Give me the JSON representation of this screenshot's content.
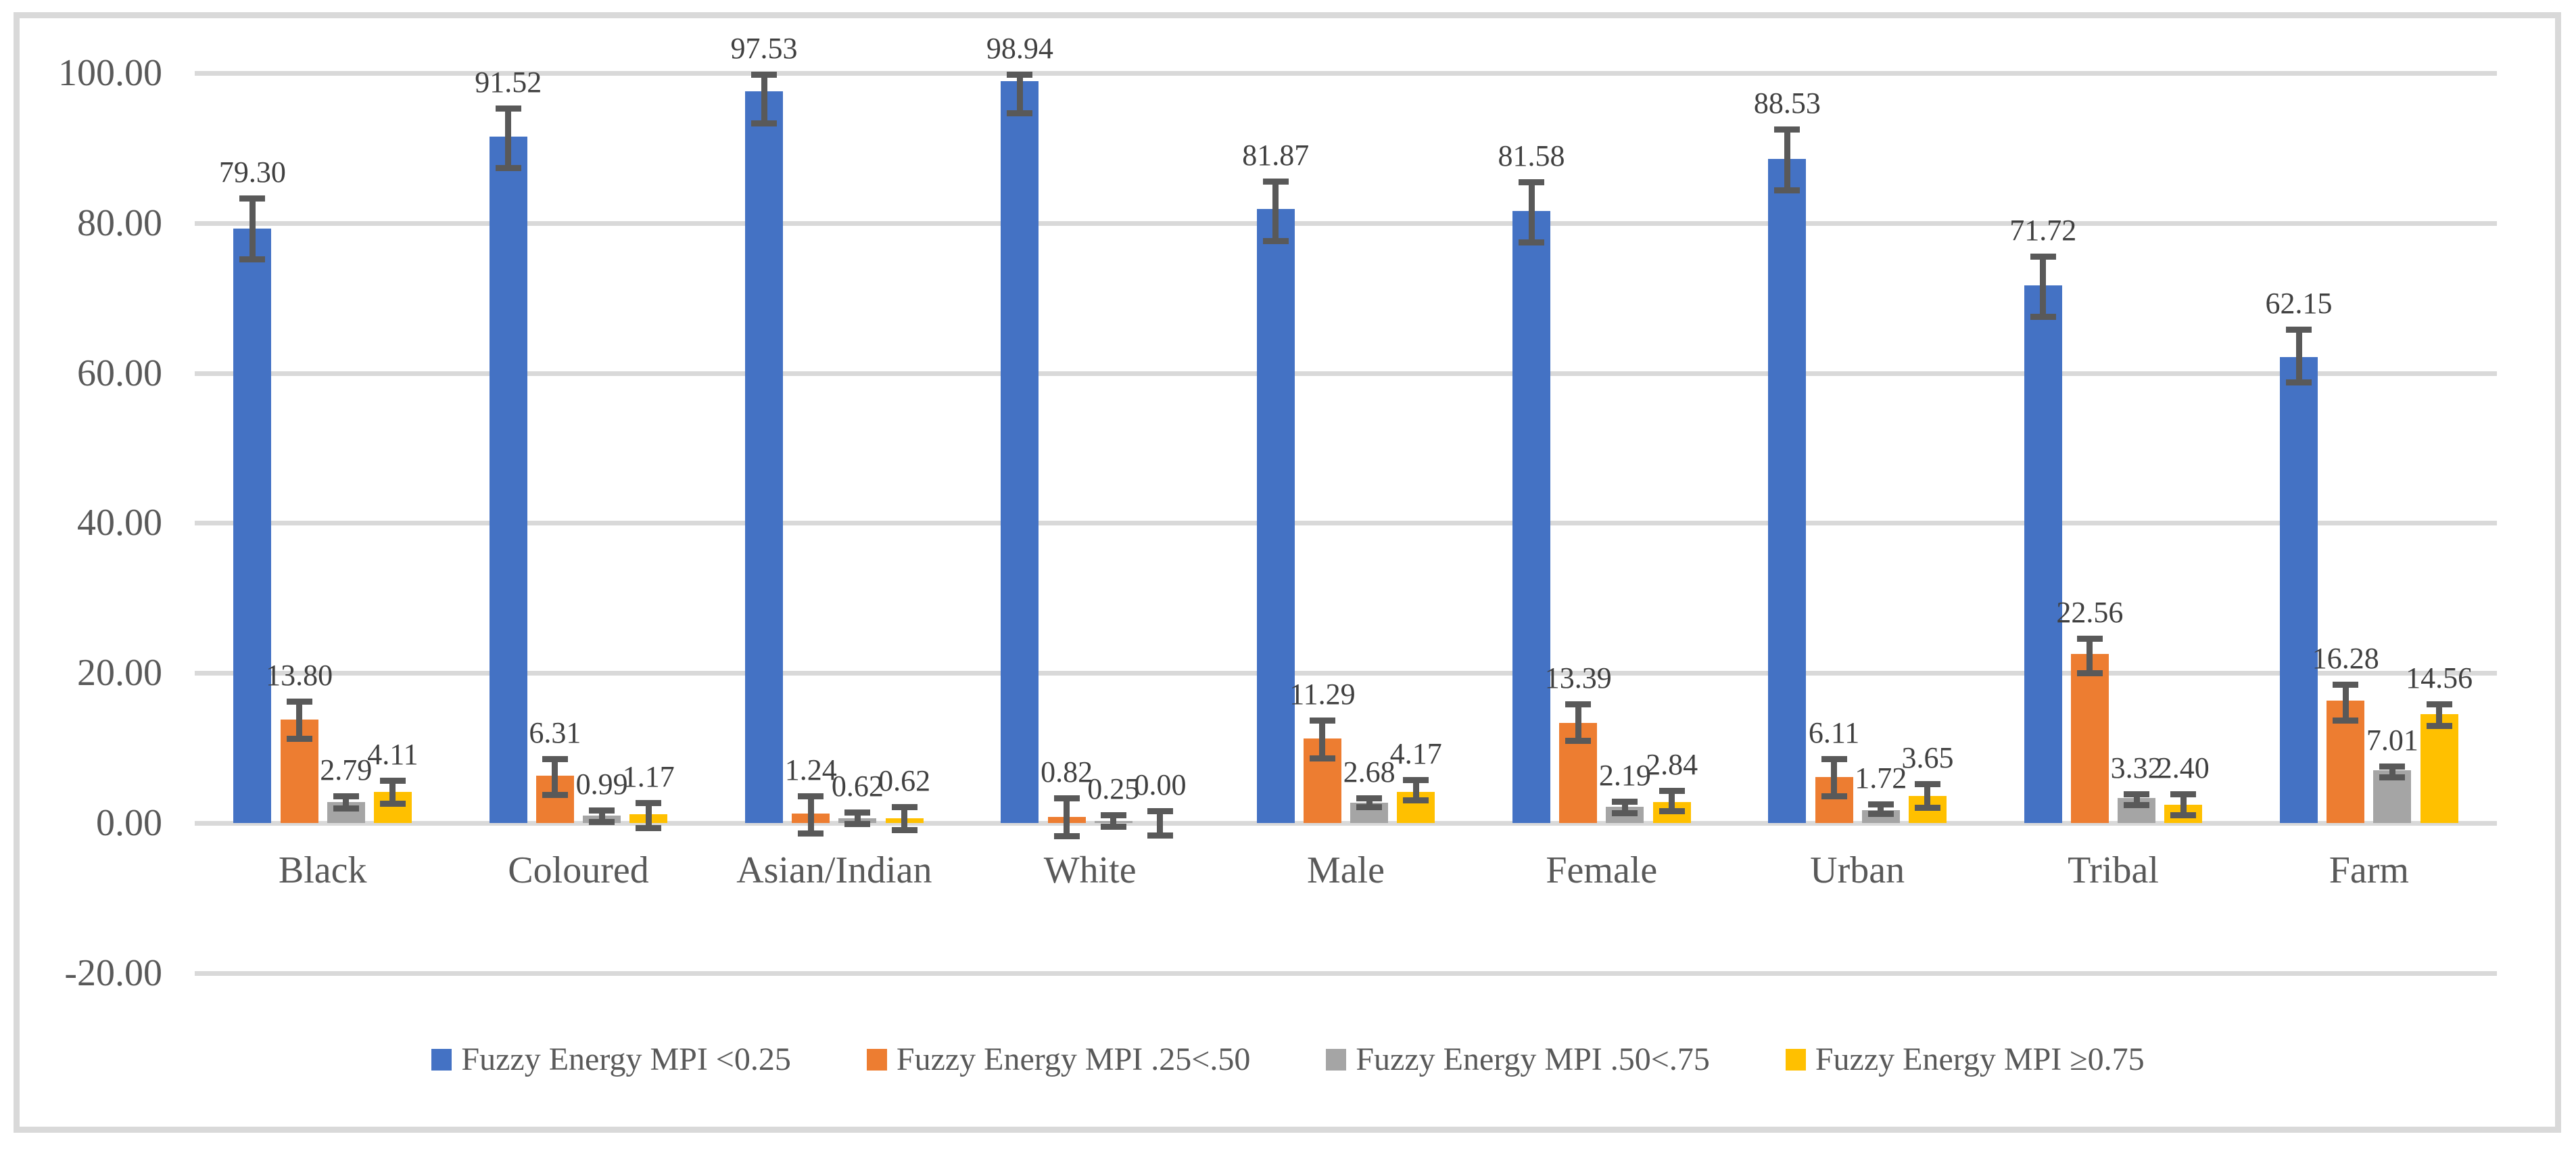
{
  "page": {
    "background": "#FFFFFF",
    "border_color": "#D9D9D9"
  },
  "chart_data": {
    "type": "bar",
    "title": "",
    "xlabel": "",
    "ylabel": "",
    "categories": [
      "Black",
      "Coloured",
      "Asian/Indian",
      "White",
      "Male",
      "Female",
      "Urban",
      "Tribal",
      "Farm"
    ],
    "series": [
      {
        "name": "Fuzzy Energy MPI <0.25",
        "color": "#4472C4",
        "values": [
          79.3,
          91.52,
          97.53,
          98.94,
          81.87,
          81.58,
          88.53,
          71.72,
          62.15
        ],
        "err_up": [
          4.0,
          3.8,
          2.3,
          0.9,
          3.7,
          3.9,
          4.0,
          3.8,
          3.7
        ],
        "err_down": [
          4.1,
          4.1,
          4.2,
          4.3,
          4.2,
          4.1,
          4.1,
          4.2,
          3.4
        ]
      },
      {
        "name": "Fuzzy Energy MPI .25<.50",
        "color": "#ED7D31",
        "values": [
          13.8,
          6.31,
          1.24,
          0.82,
          11.29,
          13.39,
          6.11,
          22.56,
          16.28
        ],
        "err_up": [
          2.4,
          2.3,
          2.4,
          2.5,
          2.4,
          2.5,
          2.5,
          2.1,
          2.2
        ],
        "err_down": [
          2.5,
          2.5,
          2.6,
          2.5,
          2.6,
          2.4,
          2.5,
          2.5,
          2.6
        ]
      },
      {
        "name": "Fuzzy Energy MPI .50<.75",
        "color": "#A5A5A5",
        "values": [
          2.79,
          0.99,
          0.62,
          0.25,
          2.68,
          2.19,
          1.72,
          3.32,
          7.01
        ],
        "err_up": [
          0.8,
          0.7,
          0.8,
          0.8,
          0.7,
          0.7,
          0.8,
          0.6,
          0.6
        ],
        "err_down": [
          0.8,
          0.8,
          0.7,
          0.7,
          0.5,
          0.85,
          0.5,
          0.9,
          0.9
        ]
      },
      {
        "name": "Fuzzy Energy MPI ≥0.75",
        "color": "#FFC000",
        "values": [
          4.11,
          1.17,
          0.62,
          0.0,
          4.17,
          2.84,
          3.65,
          2.4,
          14.56
        ],
        "err_up": [
          1.6,
          1.5,
          1.5,
          1.65,
          1.6,
          1.5,
          1.6,
          1.5,
          1.3
        ],
        "err_down": [
          1.5,
          1.8,
          1.5,
          1.65,
          1.1,
          1.2,
          1.55,
          1.35,
          1.6
        ]
      }
    ],
    "y_axis": {
      "tick_labels": [
        "100.00",
        "80.00",
        "60.00",
        "40.00",
        "20.00",
        "0.00",
        "-20.00"
      ],
      "tick_values": [
        100,
        80,
        60,
        40,
        20,
        0,
        -20
      ],
      "min": -20,
      "max": 100
    },
    "grid": true,
    "gridline_color": "#D9D9D9",
    "error_bar_color": "#595959",
    "axis_label_color": "#595959",
    "data_label_color": "#404040",
    "value_labels": true,
    "value_label_format": "0.00",
    "legend": {
      "position": "bottom",
      "entries": [
        "Fuzzy Energy MPI <0.25",
        "Fuzzy Energy MPI .25<.50",
        "Fuzzy Energy MPI .50<.75",
        "Fuzzy Energy MPI ≥0.75"
      ]
    }
  }
}
